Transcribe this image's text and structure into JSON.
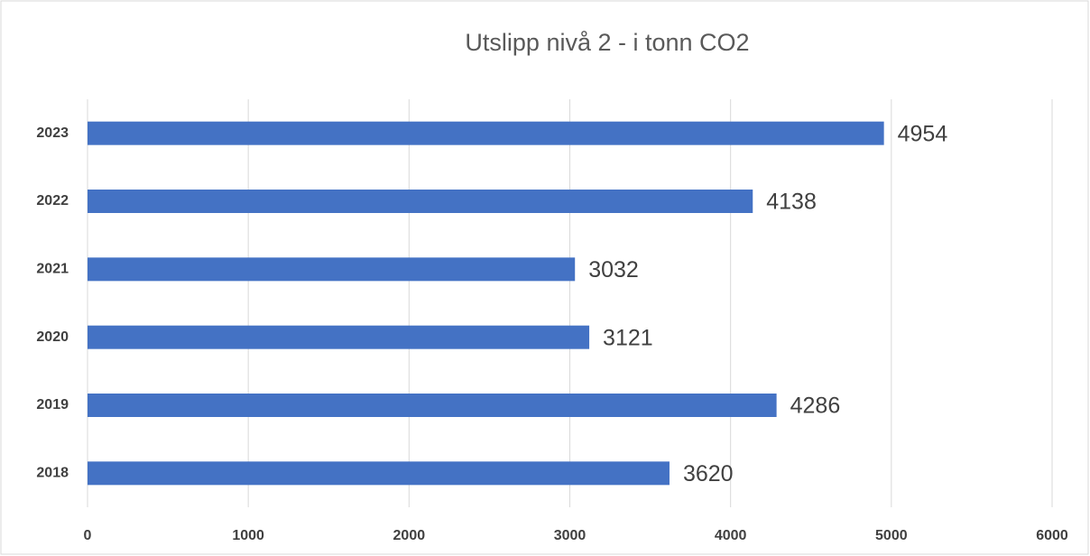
{
  "chart_data": {
    "type": "bar",
    "orientation": "horizontal",
    "title": "Utslipp nivå 2 - i tonn CO2",
    "categories": [
      "2018",
      "2019",
      "2020",
      "2021",
      "2022",
      "2023"
    ],
    "values": [
      3620,
      4286,
      3121,
      3032,
      4138,
      4954
    ],
    "color": "#4472c4",
    "xlim": [
      0,
      6000
    ],
    "xticks": [
      0,
      1000,
      2000,
      3000,
      4000,
      5000,
      6000
    ],
    "grid": true
  }
}
